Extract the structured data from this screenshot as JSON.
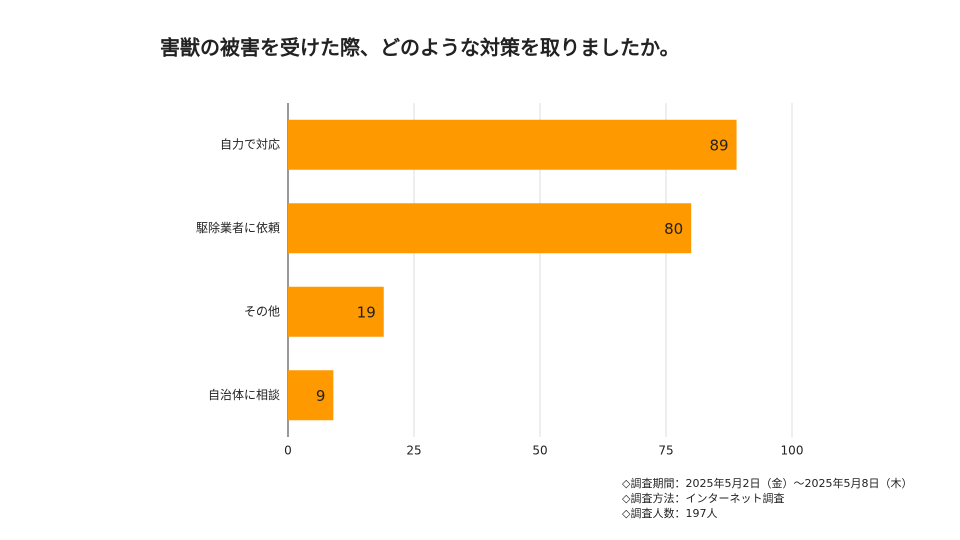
{
  "chart_data": {
    "type": "bar",
    "orientation": "horizontal",
    "title": "害獣の被害を受けた際、どのような対策を取りましたか。",
    "categories": [
      "自力で対応",
      "駆除業者に依頼",
      "その他",
      "自治体に相談"
    ],
    "values": [
      89,
      80,
      19,
      9
    ],
    "color": "#ff9900",
    "xlim": [
      0,
      100
    ],
    "xticks": [
      0,
      25,
      50,
      75,
      100
    ],
    "grid": true,
    "notes": [
      "◇調査期間：2025年5月2日（金）～2025年5月8日（木）",
      "◇調査方法：インターネット調査",
      "◇調査人数：197人"
    ]
  }
}
